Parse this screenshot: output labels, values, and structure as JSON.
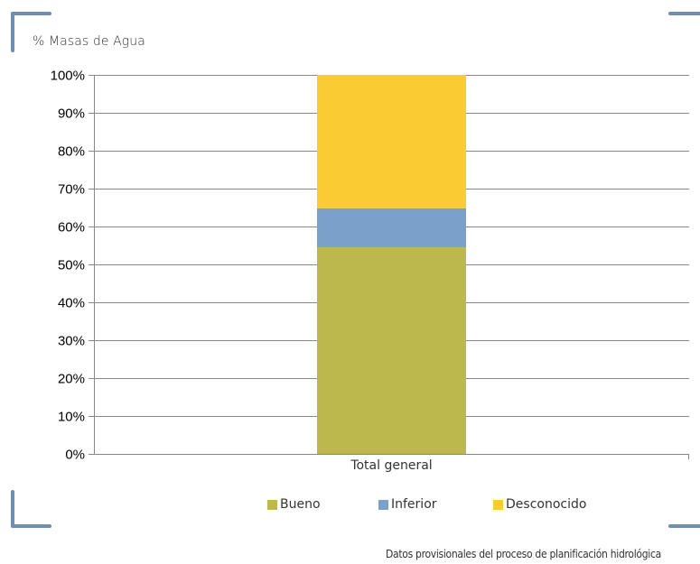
{
  "chart_data": {
    "type": "bar",
    "stacked": true,
    "ylabel": "% Masas de Agua",
    "xlabel": "",
    "categories": [
      "Total general"
    ],
    "ylim": [
      0,
      100
    ],
    "yticks": [
      "0%",
      "10%",
      "20%",
      "30%",
      "40%",
      "50%",
      "60%",
      "70%",
      "80%",
      "90%",
      "100%"
    ],
    "series": [
      {
        "name": "Bueno",
        "values": [
          54.5
        ],
        "color": "#bcb84e"
      },
      {
        "name": "Inferior",
        "values": [
          10.3
        ],
        "color": "#7ba0c9"
      },
      {
        "name": "Desconocido",
        "values": [
          35.2
        ],
        "color": "#fbcb33"
      }
    ],
    "grid": true,
    "legend_position": "bottom"
  },
  "footer": "Datos provisionales del proceso de planificación hidrológica",
  "colors": {
    "accent_frame": "#6d8fb4",
    "gridline": "#888888"
  }
}
